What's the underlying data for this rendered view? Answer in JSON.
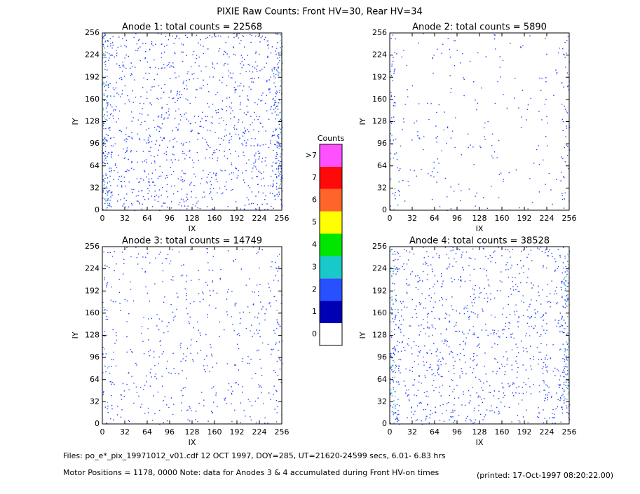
{
  "title": "PIXIE Raw Counts:  Front HV=30, Rear HV=34",
  "chart_data": [
    {
      "type": "heatmap",
      "title": "Anode 1: total counts = 22568",
      "x_label": "IX",
      "y_label": "IY",
      "xlim": [
        0,
        256
      ],
      "ylim": [
        0,
        256
      ],
      "xticks": [
        0,
        32,
        64,
        96,
        128,
        160,
        192,
        224,
        256
      ],
      "yticks": [
        0,
        32,
        64,
        96,
        128,
        160,
        192,
        224,
        256
      ]
    },
    {
      "type": "heatmap",
      "title": "Anode 2: total counts = 5890",
      "x_label": "IX",
      "y_label": "IY",
      "xlim": [
        0,
        256
      ],
      "ylim": [
        0,
        256
      ],
      "xticks": [
        0,
        32,
        64,
        96,
        128,
        160,
        192,
        224,
        256
      ],
      "yticks": [
        0,
        32,
        64,
        96,
        128,
        160,
        192,
        224,
        256
      ]
    },
    {
      "type": "heatmap",
      "title": "Anode 3: total counts = 14749",
      "x_label": "IX",
      "y_label": "IY",
      "xlim": [
        0,
        256
      ],
      "ylim": [
        0,
        256
      ],
      "xticks": [
        0,
        32,
        64,
        96,
        128,
        160,
        192,
        224,
        256
      ],
      "yticks": [
        0,
        32,
        64,
        96,
        128,
        160,
        192,
        224,
        256
      ]
    },
    {
      "type": "heatmap",
      "title": "Anode 4: total counts = 38528",
      "x_label": "IX",
      "y_label": "IY",
      "xlim": [
        0,
        256
      ],
      "ylim": [
        0,
        256
      ],
      "xticks": [
        0,
        32,
        64,
        96,
        128,
        160,
        192,
        224,
        256
      ],
      "yticks": [
        0,
        32,
        64,
        96,
        128,
        160,
        192,
        224,
        256
      ]
    }
  ],
  "colorbar": {
    "title": "Counts",
    "levels": [
      {
        "label": "0",
        "color": "#ffffff"
      },
      {
        "label": "1",
        "color": "#0000b4"
      },
      {
        "label": "2",
        "color": "#2850ff"
      },
      {
        "label": "3",
        "color": "#19c8c8"
      },
      {
        "label": "4",
        "color": "#00e600"
      },
      {
        "label": "5",
        "color": "#ffff00"
      },
      {
        "label": "6",
        "color": "#ff6428"
      },
      {
        "label": "7",
        "color": "#ff0a0a"
      },
      {
        "label": ">7",
        "color": "#ff50ff"
      }
    ]
  },
  "footer": {
    "files": "Files: po_e*_pix_19971012_v01.cdf     12 OCT 1997, DOY=285, UT=21620-24599 secs,  6.01- 6.83 hrs",
    "motor": "Motor Positions = 1178, 0000    Note: data for Anodes 3 & 4 accumulated during Front HV-on times",
    "printed": "(printed: 17-Oct-1997 08:20:22.00)"
  }
}
